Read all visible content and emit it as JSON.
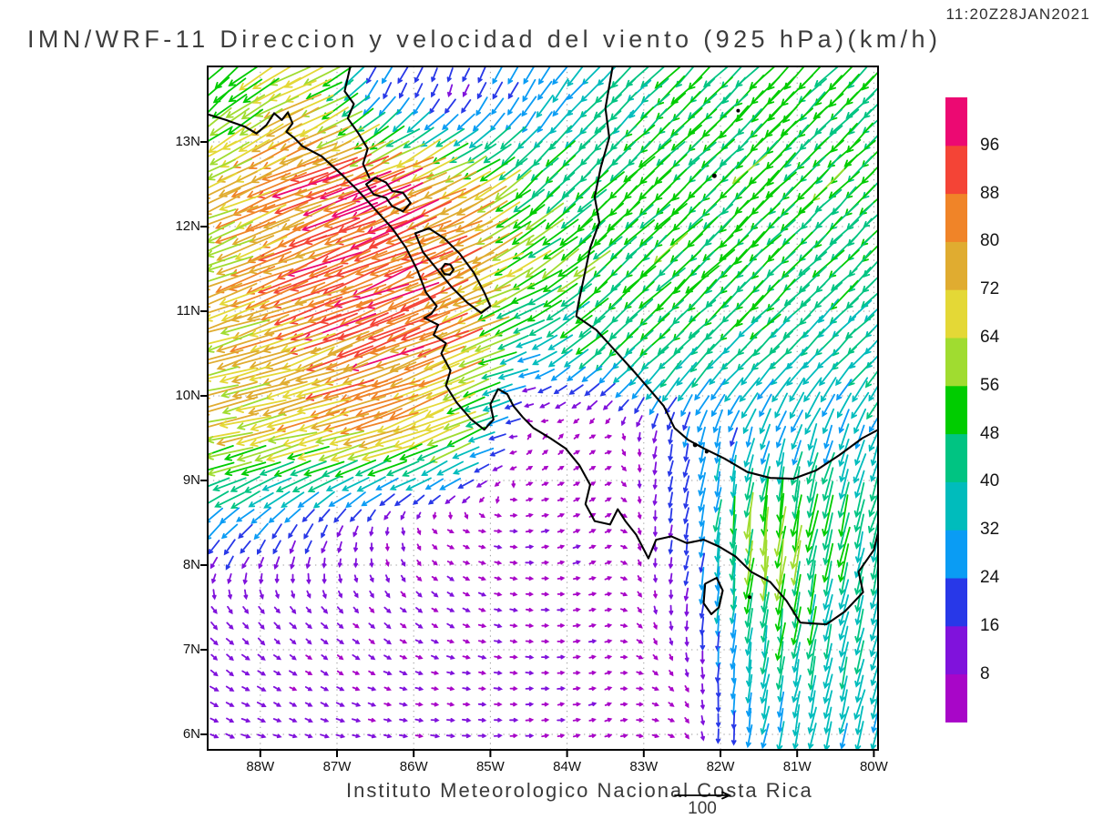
{
  "header": {
    "title": "IMN/WRF-11 Direccion y velocidad del viento (925 hPa)(km/h)",
    "timestamp": "11:20Z28JAN2021"
  },
  "footer": {
    "caption": "Instituto Meteorologico Nacional Costa Rica",
    "reference_label": "100"
  },
  "axes": {
    "lat_labels": [
      "13N",
      "12N",
      "11N",
      "10N",
      "9N",
      "8N",
      "7N",
      "6N"
    ],
    "lat_values": [
      13,
      12,
      11,
      10,
      9,
      8,
      7,
      6
    ],
    "lon_labels": [
      "88W",
      "87W",
      "86W",
      "85W",
      "84W",
      "83W",
      "82W",
      "81W",
      "80W"
    ],
    "lon_values": [
      -88,
      -87,
      -86,
      -85,
      -84,
      -83,
      -82,
      -81,
      -80
    ]
  },
  "colorbar": {
    "boundary_labels": [
      "96",
      "88",
      "80",
      "72",
      "64",
      "56",
      "48",
      "40",
      "32",
      "24",
      "16",
      "8"
    ],
    "boundary_values": [
      96,
      88,
      80,
      72,
      64,
      56,
      48,
      40,
      32,
      24,
      16,
      8
    ],
    "colors_low_to_high": [
      "#a806c8",
      "#8012dc",
      "#2838e8",
      "#0a9cf4",
      "#00bcbc",
      "#00c482",
      "#00cc00",
      "#a0dc30",
      "#e4d836",
      "#e0ac30",
      "#f08428",
      "#f44436",
      "#ec0972"
    ]
  },
  "chart_data": {
    "type": "vector_field",
    "title": "IMN/WRF-11 Direccion y velocidad del viento (925 hPa)(km/h)",
    "valid_time": "11:20Z28JAN2021",
    "units": "km/h",
    "level": "925 hPa",
    "lon_range": [
      -88.7,
      -79.9
    ],
    "lat_range": [
      5.8,
      13.9
    ],
    "reference_vector": 100,
    "color_levels": [
      8,
      16,
      24,
      32,
      40,
      48,
      56,
      64,
      72,
      80,
      88,
      96
    ],
    "color_scale": [
      "#a806c8",
      "#8012dc",
      "#2838e8",
      "#0a9cf4",
      "#00bcbc",
      "#00c482",
      "#00cc00",
      "#a0dc30",
      "#e4d836",
      "#e0ac30",
      "#f08428",
      "#f44436",
      "#ec0972"
    ],
    "grid_lons": [
      -88.5,
      -87.5,
      -86.5,
      -85.5,
      -84.5,
      -83.5,
      -82.5,
      -81.5,
      -80.5,
      -79.5
    ],
    "grid_lats": [
      13.5,
      12.5,
      11.5,
      10.5,
      9.5,
      8.5,
      7.5,
      6.5,
      5.5
    ],
    "uv_grid": [
      [
        [
          -36,
          -34
        ],
        [
          -68,
          -30
        ],
        [
          -12,
          -23
        ],
        [
          -6,
          -15
        ],
        [
          -13,
          -24
        ],
        [
          -29,
          -29
        ],
        [
          -33,
          -33
        ],
        [
          -35,
          -35
        ],
        [
          -35,
          -35
        ],
        [
          -32,
          -31
        ]
      ],
      [
        [
          -62,
          -27
        ],
        [
          -80,
          -34
        ],
        [
          -88,
          -36
        ],
        [
          -70,
          -32
        ],
        [
          -38,
          -34
        ],
        [
          -36,
          -34
        ],
        [
          -36,
          -34
        ],
        [
          -35,
          -35
        ],
        [
          -35,
          -35
        ],
        [
          -33,
          -33
        ]
      ],
      [
        [
          -63,
          -25
        ],
        [
          -78,
          -30
        ],
        [
          -90,
          -36
        ],
        [
          -74,
          -33
        ],
        [
          -50,
          -28
        ],
        [
          -36,
          -33
        ],
        [
          -36,
          -34
        ],
        [
          -36,
          -35
        ],
        [
          -33,
          -33
        ],
        [
          -31,
          -30
        ]
      ],
      [
        [
          -67,
          -19
        ],
        [
          -75,
          -26
        ],
        [
          -82,
          -30
        ],
        [
          -76,
          -28
        ],
        [
          -31,
          -12
        ],
        [
          -33,
          -32
        ],
        [
          -31,
          -30
        ],
        [
          -30,
          -29
        ],
        [
          -28,
          -28
        ],
        [
          -27,
          -26
        ]
      ],
      [
        [
          -64,
          -15
        ],
        [
          -68,
          -17
        ],
        [
          -69,
          -22
        ],
        [
          -56,
          -25
        ],
        [
          3,
          4
        ],
        [
          4,
          2
        ],
        [
          -5,
          -23
        ],
        [
          -8,
          -28
        ],
        [
          -11,
          -31
        ],
        [
          -13,
          -34
        ]
      ],
      [
        [
          -22,
          -20
        ],
        [
          -12,
          -18
        ],
        [
          -3,
          -11
        ],
        [
          6,
          -3
        ],
        [
          8,
          1
        ],
        [
          6,
          4
        ],
        [
          -4,
          -19
        ],
        [
          -6,
          -60
        ],
        [
          -11,
          -48
        ],
        [
          -12,
          -35
        ]
      ],
      [
        [
          6,
          -8
        ],
        [
          6,
          -7
        ],
        [
          6,
          -6
        ],
        [
          7,
          -4
        ],
        [
          8,
          -1
        ],
        [
          7,
          2
        ],
        [
          -1,
          -13
        ],
        [
          -6,
          -50
        ],
        [
          -9,
          -43
        ],
        [
          -9,
          -34
        ]
      ],
      [
        [
          9,
          -5
        ],
        [
          8,
          -4
        ],
        [
          8,
          -3
        ],
        [
          8,
          -1
        ],
        [
          8,
          0
        ],
        [
          7,
          2
        ],
        [
          4,
          -4
        ],
        [
          -6,
          -34
        ],
        [
          -8,
          -36
        ],
        [
          -10,
          -32
        ]
      ],
      [
        [
          10,
          -3
        ],
        [
          9,
          -2
        ],
        [
          9,
          -1
        ],
        [
          9,
          0
        ],
        [
          8,
          1
        ],
        [
          7,
          2
        ],
        [
          5,
          -2
        ],
        [
          -5,
          -31
        ],
        [
          -7,
          -33
        ],
        [
          -8,
          -30
        ]
      ]
    ]
  },
  "map": {
    "coastlines": [
      {
        "name": "pacific-coast",
        "closed": false,
        "points": [
          [
            -88.7,
            13.33
          ],
          [
            -88.45,
            13.26
          ],
          [
            -88.2,
            13.18
          ],
          [
            -88.05,
            13.1
          ],
          [
            -87.92,
            13.2
          ],
          [
            -87.82,
            13.34
          ],
          [
            -87.72,
            13.26
          ],
          [
            -87.64,
            13.35
          ],
          [
            -87.58,
            13.22
          ],
          [
            -87.66,
            13.12
          ],
          [
            -87.56,
            13.05
          ],
          [
            -87.45,
            12.95
          ],
          [
            -87.2,
            12.83
          ],
          [
            -86.92,
            12.6
          ],
          [
            -86.7,
            12.4
          ],
          [
            -86.5,
            12.2
          ],
          [
            -86.28,
            11.98
          ],
          [
            -86.1,
            11.75
          ],
          [
            -85.95,
            11.48
          ],
          [
            -85.84,
            11.22
          ],
          [
            -85.7,
            11.06
          ],
          [
            -85.77,
            10.97
          ],
          [
            -85.86,
            10.92
          ],
          [
            -85.68,
            10.84
          ],
          [
            -85.74,
            10.72
          ],
          [
            -85.58,
            10.62
          ],
          [
            -85.64,
            10.5
          ],
          [
            -85.52,
            10.3
          ],
          [
            -85.58,
            10.12
          ],
          [
            -85.44,
            9.92
          ],
          [
            -85.25,
            9.72
          ],
          [
            -85.08,
            9.6
          ],
          [
            -84.96,
            9.72
          ],
          [
            -85.0,
            9.9
          ],
          [
            -84.9,
            10.08
          ],
          [
            -84.78,
            10.02
          ],
          [
            -84.7,
            9.88
          ],
          [
            -84.58,
            9.75
          ],
          [
            -84.44,
            9.62
          ],
          [
            -84.22,
            9.5
          ],
          [
            -84.02,
            9.38
          ],
          [
            -83.84,
            9.18
          ],
          [
            -83.7,
            8.95
          ],
          [
            -83.76,
            8.72
          ],
          [
            -83.64,
            8.52
          ],
          [
            -83.44,
            8.48
          ],
          [
            -83.34,
            8.66
          ],
          [
            -83.24,
            8.52
          ],
          [
            -83.1,
            8.36
          ],
          [
            -82.94,
            8.08
          ],
          [
            -82.84,
            8.3
          ],
          [
            -82.64,
            8.34
          ],
          [
            -82.44,
            8.26
          ],
          [
            -82.22,
            8.3
          ],
          [
            -82.02,
            8.22
          ],
          [
            -81.8,
            8.1
          ],
          [
            -81.6,
            7.92
          ],
          [
            -81.35,
            7.8
          ],
          [
            -81.14,
            7.58
          ],
          [
            -80.96,
            7.32
          ],
          [
            -80.62,
            7.3
          ],
          [
            -80.38,
            7.45
          ],
          [
            -80.14,
            7.68
          ],
          [
            -80.2,
            7.92
          ],
          [
            -80.0,
            8.18
          ],
          [
            -79.9,
            8.55
          ],
          [
            -79.8,
            9.02
          ]
        ]
      },
      {
        "name": "caribbean-coast",
        "closed": false,
        "points": [
          [
            -83.4,
            13.92
          ],
          [
            -83.5,
            13.4
          ],
          [
            -83.45,
            13.05
          ],
          [
            -83.56,
            12.7
          ],
          [
            -83.64,
            12.35
          ],
          [
            -83.58,
            12.05
          ],
          [
            -83.7,
            11.75
          ],
          [
            -83.78,
            11.4
          ],
          [
            -83.85,
            11.1
          ],
          [
            -83.88,
            10.94
          ],
          [
            -83.62,
            10.78
          ],
          [
            -83.36,
            10.52
          ],
          [
            -83.12,
            10.28
          ],
          [
            -82.9,
            10.05
          ],
          [
            -82.74,
            9.88
          ],
          [
            -82.6,
            9.62
          ],
          [
            -82.42,
            9.48
          ],
          [
            -82.22,
            9.38
          ],
          [
            -81.95,
            9.26
          ],
          [
            -81.65,
            9.1
          ],
          [
            -81.35,
            9.03
          ],
          [
            -81.05,
            9.02
          ],
          [
            -80.75,
            9.12
          ],
          [
            -80.45,
            9.3
          ],
          [
            -80.15,
            9.5
          ],
          [
            -79.9,
            9.62
          ],
          [
            -79.7,
            9.56
          ]
        ]
      },
      {
        "name": "honduras-inland-line",
        "closed": false,
        "points": [
          [
            -86.82,
            13.92
          ],
          [
            -86.9,
            13.6
          ],
          [
            -86.78,
            13.45
          ],
          [
            -86.86,
            13.28
          ],
          [
            -86.72,
            13.1
          ],
          [
            -86.6,
            12.92
          ],
          [
            -86.66,
            12.74
          ],
          [
            -86.58,
            12.58
          ]
        ]
      },
      {
        "name": "lake-managua",
        "closed": true,
        "points": [
          [
            -86.62,
            12.5
          ],
          [
            -86.5,
            12.58
          ],
          [
            -86.36,
            12.52
          ],
          [
            -86.28,
            12.42
          ],
          [
            -86.14,
            12.4
          ],
          [
            -86.04,
            12.28
          ],
          [
            -86.14,
            12.18
          ],
          [
            -86.28,
            12.24
          ],
          [
            -86.36,
            12.34
          ],
          [
            -86.52,
            12.38
          ]
        ]
      },
      {
        "name": "lake-nicaragua",
        "closed": true,
        "points": [
          [
            -85.98,
            11.92
          ],
          [
            -85.8,
            11.98
          ],
          [
            -85.6,
            11.86
          ],
          [
            -85.4,
            11.68
          ],
          [
            -85.22,
            11.46
          ],
          [
            -85.08,
            11.22
          ],
          [
            -85.0,
            11.06
          ],
          [
            -85.12,
            10.98
          ],
          [
            -85.3,
            11.1
          ],
          [
            -85.5,
            11.28
          ],
          [
            -85.7,
            11.5
          ],
          [
            -85.88,
            11.7
          ]
        ]
      },
      {
        "name": "ometepe-island",
        "closed": true,
        "points": [
          [
            -85.64,
            11.5
          ],
          [
            -85.59,
            11.56
          ],
          [
            -85.52,
            11.55
          ],
          [
            -85.48,
            11.49
          ],
          [
            -85.53,
            11.43
          ],
          [
            -85.6,
            11.44
          ]
        ]
      },
      {
        "name": "coiba-island",
        "closed": true,
        "points": [
          [
            -82.2,
            7.78
          ],
          [
            -82.05,
            7.85
          ],
          [
            -81.97,
            7.7
          ],
          [
            -82.02,
            7.5
          ],
          [
            -82.12,
            7.42
          ],
          [
            -82.22,
            7.55
          ]
        ]
      }
    ],
    "island_dots": [
      {
        "name": "providencia",
        "lon": -81.77,
        "lat": 13.37,
        "r": 2
      },
      {
        "name": "san-andres",
        "lon": -82.08,
        "lat": 12.6,
        "r": 2.5
      },
      {
        "name": "bocas-1",
        "lon": -82.33,
        "lat": 9.42,
        "r": 2.5
      },
      {
        "name": "bocas-2",
        "lon": -82.18,
        "lat": 9.34,
        "r": 2
      },
      {
        "name": "cebaco",
        "lon": -81.62,
        "lat": 7.62,
        "r": 2
      }
    ]
  }
}
